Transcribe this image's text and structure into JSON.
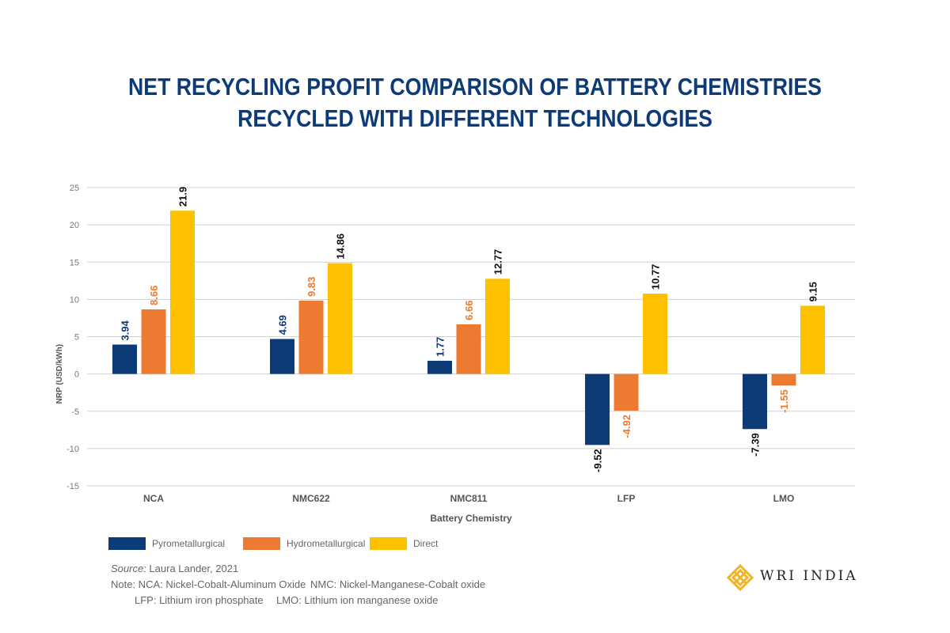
{
  "chart_data": {
    "type": "bar",
    "title_lines": [
      "NET RECYCLING PROFIT COMPARISON OF BATTERY CHEMISTRIES",
      "RECYCLED WITH DIFFERENT TECHNOLOGIES"
    ],
    "xlabel": "Battery Chemistry",
    "ylabel": "NRP (USD/kWh)",
    "ylim": [
      -15,
      25
    ],
    "yticks": [
      25,
      20,
      15,
      10,
      5,
      0,
      -5,
      -10,
      -15
    ],
    "grid": true,
    "legend_position": "bottom-left",
    "categories": [
      "NCA",
      "NMC622",
      "NMC811",
      "LFP",
      "LMO"
    ],
    "series": [
      {
        "name": "Pyrometallurgical",
        "color": "#0d3b78",
        "label_color": "#0d3b78",
        "values": [
          3.94,
          4.69,
          1.77,
          -9.52,
          -7.39
        ],
        "labels": [
          "3.94",
          "4.69",
          "1.77",
          "-9.52",
          "-7.39"
        ]
      },
      {
        "name": "Hydrometallurgical",
        "color": "#ec7b31",
        "label_color": "#ec7b31",
        "values": [
          8.66,
          9.83,
          6.66,
          -4.92,
          -1.55
        ],
        "labels": [
          "8.66",
          "9.83",
          "6.66",
          "-4.92",
          "-1.55"
        ]
      },
      {
        "name": "Direct",
        "color": "#fdc100",
        "label_color": "#111111",
        "values": [
          21.9,
          14.86,
          12.77,
          10.77,
          9.15
        ],
        "labels": [
          "21.9",
          "14.86",
          "12.77",
          "10.77",
          "9.15"
        ]
      }
    ]
  },
  "footer": {
    "source_label": "Source:",
    "source_text": " Laura Lander, 2021",
    "note_line1a": "Note: NCA: Nickel-Cobalt-Aluminum Oxide",
    "note_line1b": "NMC: Nickel-Manganese-Cobalt oxide",
    "note_line2a": "LFP: Lithium iron phosphate",
    "note_line2b": "LMO: Lithium ion manganese oxide"
  },
  "logo": {
    "text": "WRI INDIA",
    "color": "#f0b429"
  }
}
